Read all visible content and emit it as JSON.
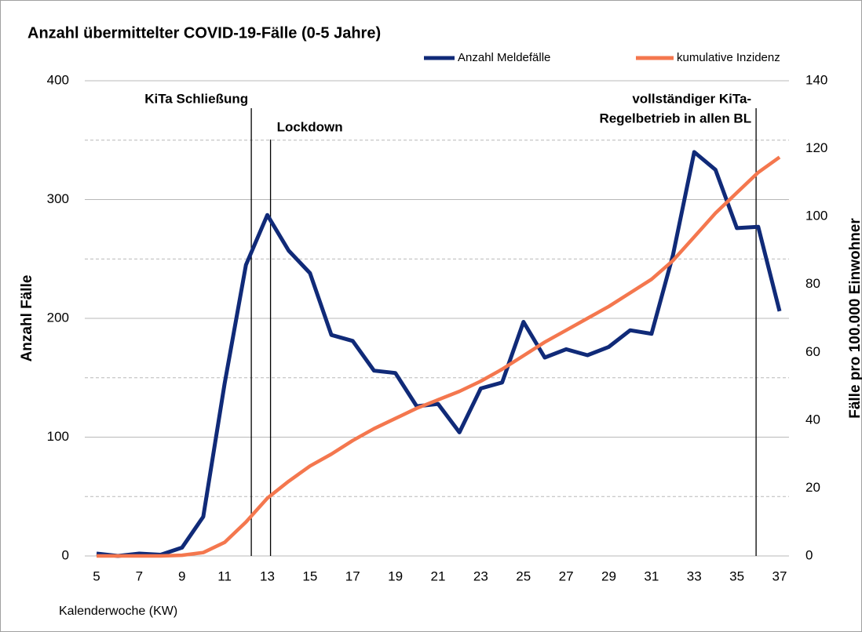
{
  "chart_data": {
    "type": "line",
    "title": "Anzahl übermittelter COVID-19-Fälle  (0-5 Jahre)",
    "xlabel": "Kalenderwoche (KW)",
    "ylabel": "Anzahl Fälle",
    "y2label": "Fälle pro 100.000 Einwohner",
    "x": [
      5,
      6,
      7,
      8,
      9,
      10,
      11,
      12,
      13,
      14,
      15,
      16,
      17,
      18,
      19,
      20,
      21,
      22,
      23,
      24,
      25,
      26,
      27,
      28,
      29,
      30,
      31,
      32,
      33,
      34,
      35,
      36,
      37
    ],
    "xlim": [
      5,
      37
    ],
    "xticks": [
      5,
      7,
      9,
      11,
      13,
      15,
      17,
      19,
      21,
      23,
      25,
      27,
      29,
      31,
      33,
      35,
      37
    ],
    "ylim": [
      0,
      400
    ],
    "yticks": [
      0,
      100,
      200,
      300,
      400
    ],
    "yminorticks": [
      50,
      150,
      250,
      350
    ],
    "y2lim": [
      0,
      140
    ],
    "y2ticks": [
      0,
      20,
      40,
      60,
      80,
      100,
      120,
      140
    ],
    "grid": true,
    "legend": "top",
    "series": [
      {
        "name": "Anzahl Meldefälle",
        "color": "#102a78",
        "values": [
          2,
          0,
          2,
          1,
          7,
          33,
          145,
          245,
          287,
          257,
          238,
          186,
          181,
          156,
          154,
          126,
          128,
          104,
          141,
          146,
          197,
          167,
          174,
          169,
          176,
          190,
          187,
          253,
          340,
          325,
          276,
          277,
          206
        ]
      },
      {
        "name": "kumulative Inzidenz",
        "color": "#f4774e",
        "axis": "y2",
        "values": [
          0,
          0,
          0,
          0,
          0.2,
          1,
          4,
          10,
          17,
          22,
          26.5,
          30,
          34,
          37.5,
          40.5,
          43.5,
          46,
          48.5,
          51.5,
          55,
          59,
          63,
          66.5,
          70,
          73.5,
          77.5,
          81.5,
          87,
          94,
          101,
          107,
          113,
          117.5
        ]
      }
    ],
    "annotations": [
      {
        "text": [
          "KiTa Schließung"
        ],
        "x": 12.25
      },
      {
        "text": [
          "Lockdown"
        ],
        "x": 13.15
      },
      {
        "text": [
          "vollständiger KiTa-",
          "Regelbetrieb in allen BL"
        ],
        "x": 35.9
      }
    ]
  }
}
